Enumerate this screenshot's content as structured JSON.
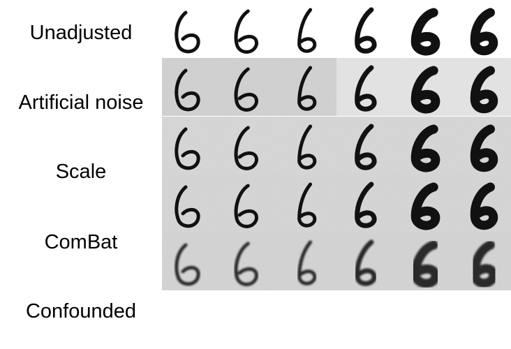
{
  "figure": {
    "rows": [
      {
        "label": "Unadjusted",
        "background": "#ffffff",
        "noise": 0.0,
        "blur": 0.0
      },
      {
        "label": "Artificial noise",
        "background": "#d2d2d2",
        "noise": 0.55,
        "blur": 0.0
      },
      {
        "label": "Scale",
        "background": "#d8d8d8",
        "noise": 0.6,
        "blur": 0.0
      },
      {
        "label": "ComBat",
        "background": "#d6d6d6",
        "noise": 0.45,
        "blur": 0.0
      },
      {
        "label": "Confounded",
        "background": "#d4d4d4",
        "noise": 0.4,
        "blur": 1.3
      }
    ],
    "digit": "6",
    "columns": 6,
    "column_weights": [
      "thin",
      "thin",
      "thin",
      "medium",
      "bold",
      "bold"
    ],
    "colors": {
      "ink": "#111111",
      "noise_block_a": "#c8c8c8",
      "noise_block_b": "#e6e6e6"
    }
  }
}
